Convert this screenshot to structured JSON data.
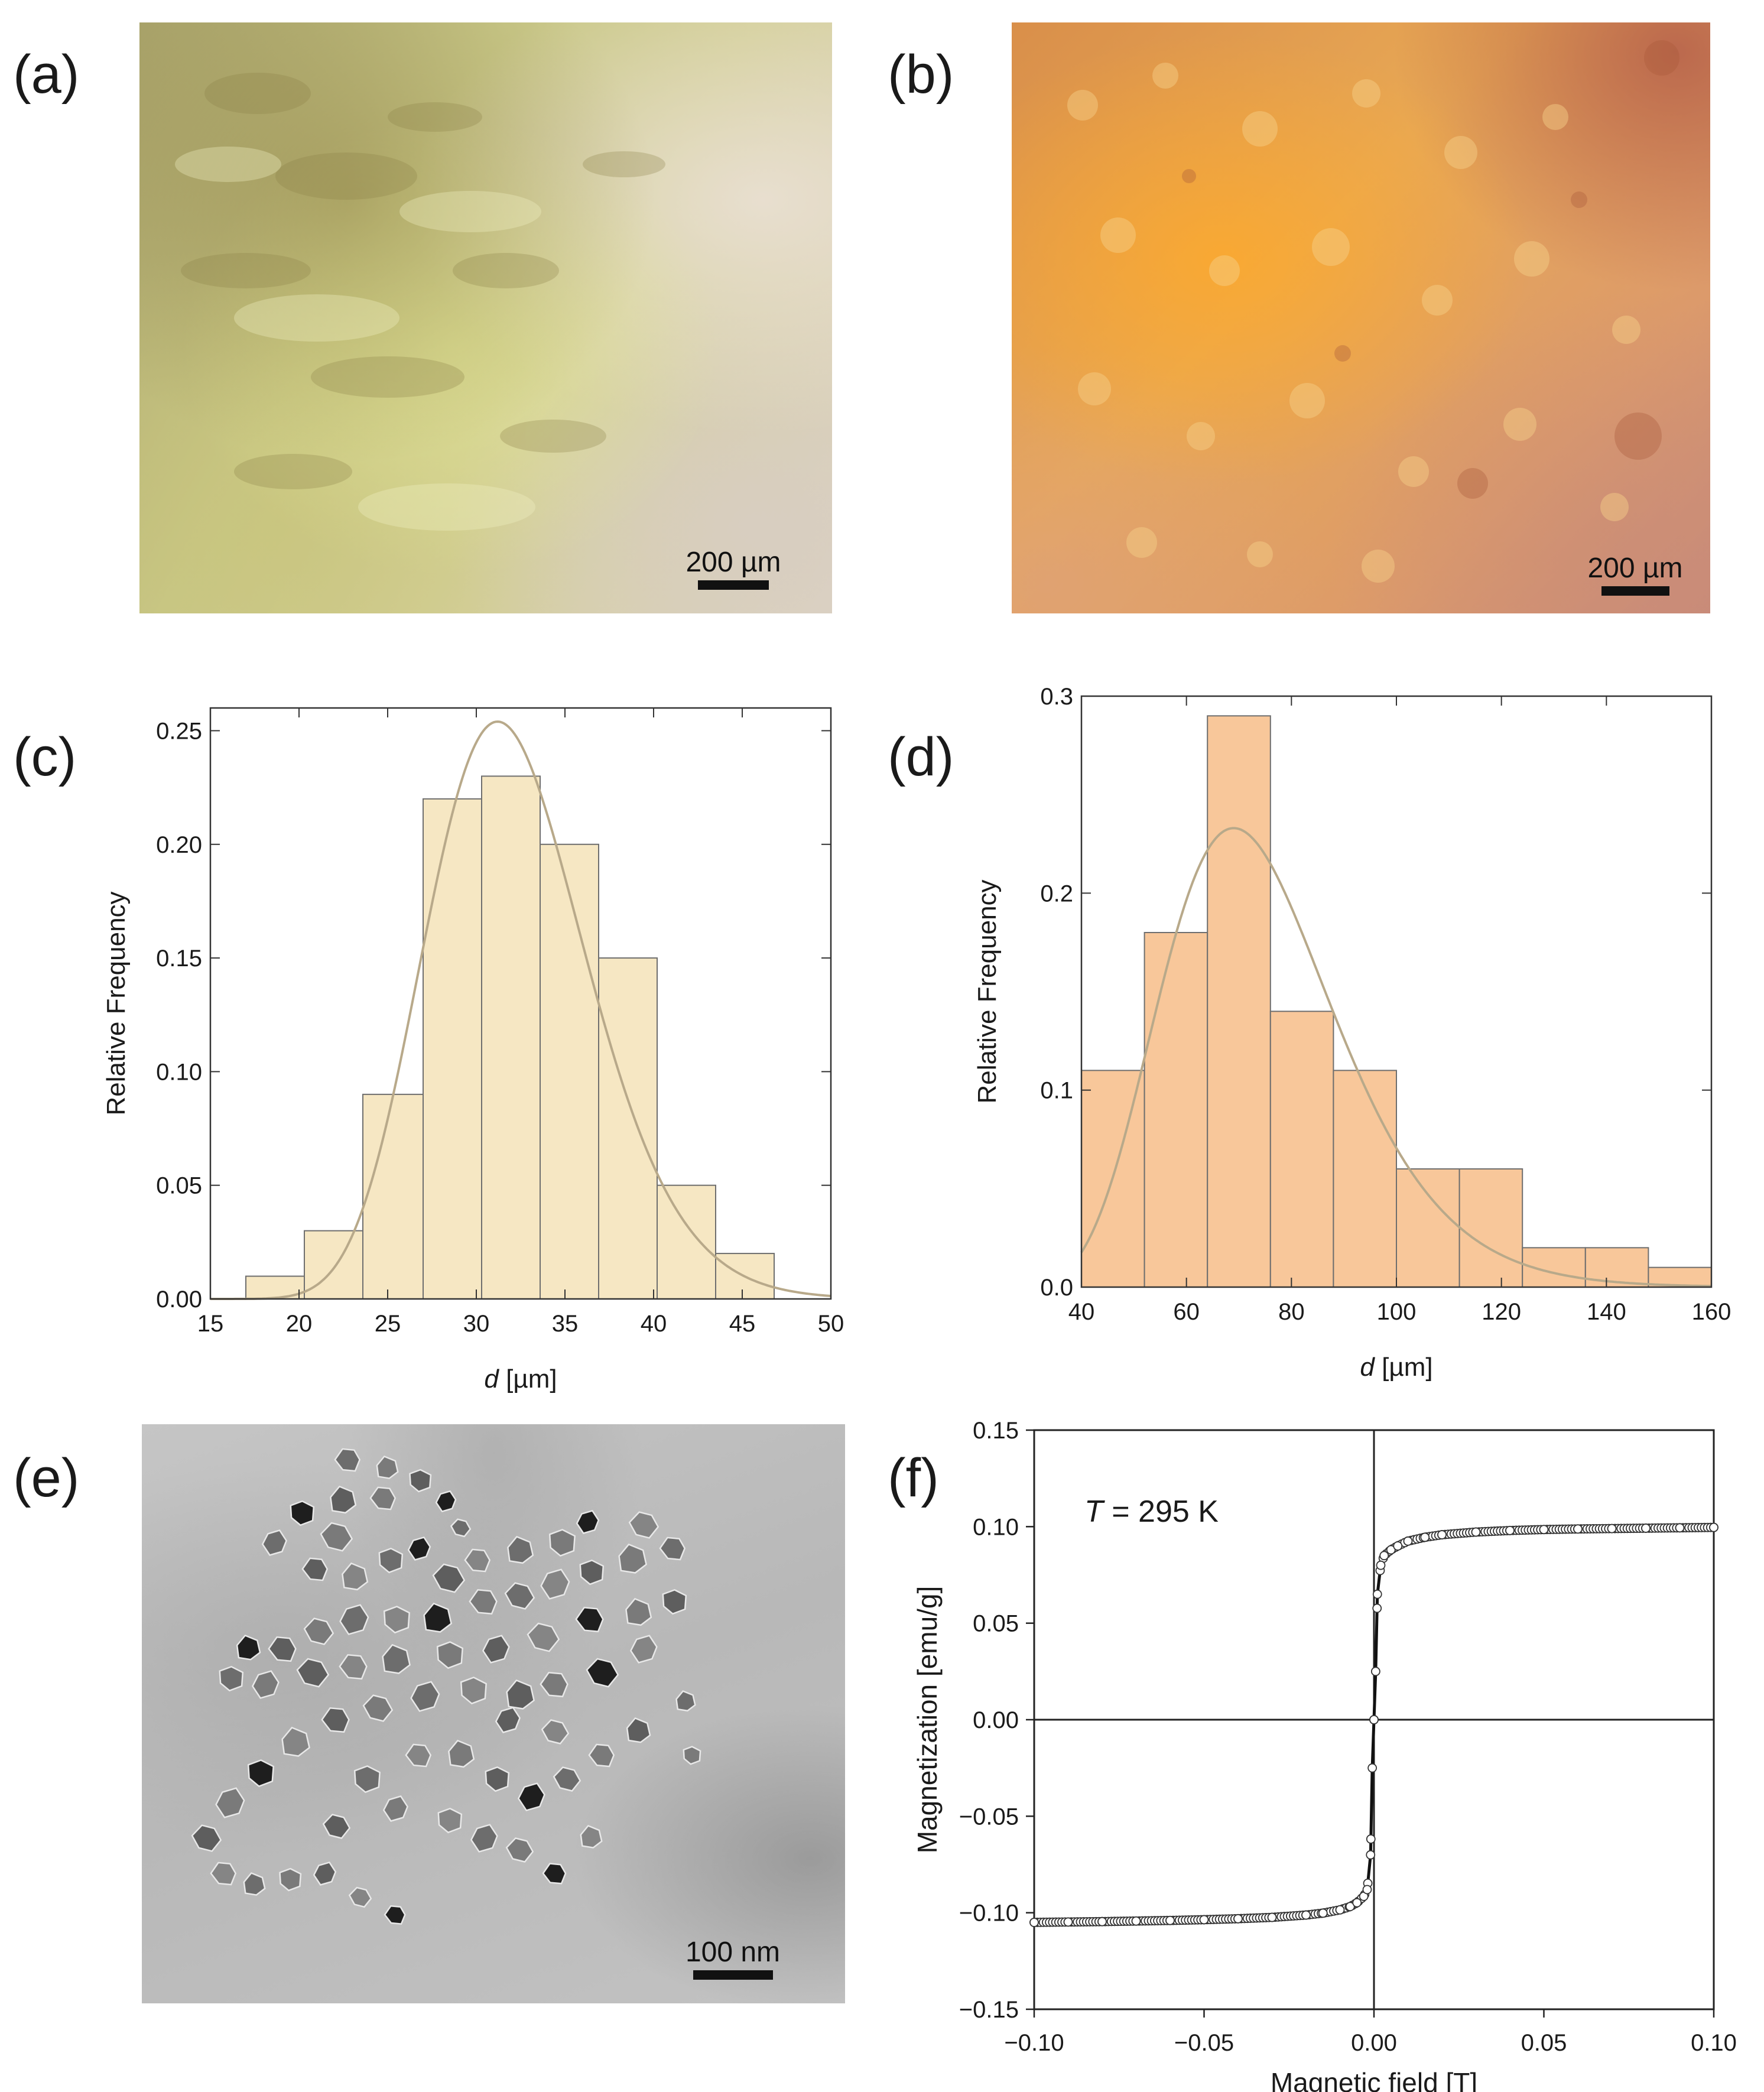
{
  "panels": {
    "a": {
      "label": "(a)",
      "scale": "200 µm"
    },
    "b": {
      "label": "(b)",
      "scale": "200 µm"
    },
    "c": {
      "label": "(c)"
    },
    "d": {
      "label": "(d)"
    },
    "e": {
      "label": "(e)",
      "scale": "100 nm"
    },
    "f": {
      "label": "(f)",
      "annotation_T": "T",
      "annotation_rest": " = 295 K"
    }
  },
  "colors": {
    "hist_c_fill": "#f6e7c3",
    "hist_d_fill": "#f8c79a",
    "bar_stroke": "#6e6e6e",
    "fit_curve": "#b8a98a",
    "photo_a_base": "#c9c489",
    "photo_b_base": "#e5a25a"
  },
  "chart_data": [
    {
      "panel": "c",
      "type": "bar",
      "xlabel_italic": "d",
      "xlabel_rest": " [µm]",
      "ylabel": "Relative Frequency",
      "xlim": [
        15,
        50
      ],
      "ylim": [
        0,
        0.26
      ],
      "xticks": [
        15,
        20,
        25,
        30,
        35,
        40,
        45,
        50
      ],
      "yticks": [
        "0.00",
        "0.05",
        "0.10",
        "0.15",
        "0.20",
        "0.25"
      ],
      "bins": [
        {
          "x0": 17.0,
          "x1": 20.3,
          "value": 0.01
        },
        {
          "x0": 20.3,
          "x1": 23.6,
          "value": 0.03
        },
        {
          "x0": 23.6,
          "x1": 27.0,
          "value": 0.09
        },
        {
          "x0": 27.0,
          "x1": 30.3,
          "value": 0.22
        },
        {
          "x0": 30.3,
          "x1": 33.6,
          "value": 0.23
        },
        {
          "x0": 33.6,
          "x1": 36.9,
          "value": 0.2
        },
        {
          "x0": 36.9,
          "x1": 40.2,
          "value": 0.15
        },
        {
          "x0": 40.2,
          "x1": 43.5,
          "value": 0.05
        },
        {
          "x0": 43.5,
          "x1": 46.8,
          "value": 0.02
        }
      ],
      "fit": {
        "kind": "lognormal",
        "peak_x": 31.2,
        "peak_y": 0.254
      }
    },
    {
      "panel": "d",
      "type": "bar",
      "xlabel_italic": "d",
      "xlabel_rest": " [µm]",
      "ylabel": "Relative Frequency",
      "xlim": [
        40,
        160
      ],
      "ylim": [
        0,
        0.3
      ],
      "xticks": [
        40,
        60,
        80,
        100,
        120,
        140,
        160
      ],
      "yticks": [
        "0.0",
        "0.1",
        "0.2",
        "0.3"
      ],
      "bins": [
        {
          "x0": 40,
          "x1": 52,
          "value": 0.11
        },
        {
          "x0": 52,
          "x1": 64,
          "value": 0.18
        },
        {
          "x0": 64,
          "x1": 76,
          "value": 0.29
        },
        {
          "x0": 76,
          "x1": 88,
          "value": 0.14
        },
        {
          "x0": 88,
          "x1": 100,
          "value": 0.11
        },
        {
          "x0": 100,
          "x1": 112,
          "value": 0.06
        },
        {
          "x0": 112,
          "x1": 124,
          "value": 0.06
        },
        {
          "x0": 124,
          "x1": 136,
          "value": 0.02
        },
        {
          "x0": 136,
          "x1": 148,
          "value": 0.02
        },
        {
          "x0": 148,
          "x1": 160,
          "value": 0.01
        }
      ],
      "fit": {
        "kind": "lognormal",
        "peak_x": 69,
        "peak_y": 0.233
      }
    },
    {
      "panel": "f",
      "type": "scatter",
      "xlabel": "Magnetic field [T]",
      "ylabel": "Magnetization [emu/g]",
      "xlim": [
        -0.1,
        0.1
      ],
      "ylim": [
        -0.15,
        0.15
      ],
      "xticks": [
        "−0.10",
        "−0.05",
        "0.00",
        "0.05",
        "0.10"
      ],
      "xtick_values": [
        -0.1,
        -0.05,
        0,
        0.05,
        0.1
      ],
      "yticks": [
        "0.15",
        "0.10",
        "0.05",
        "0.00",
        "−0.05",
        "−0.10",
        "−0.15"
      ],
      "ytick_values": [
        0.15,
        0.1,
        0.05,
        0,
        -0.05,
        -0.1,
        -0.15
      ],
      "grid": false,
      "series": [
        {
          "x": [
            -0.1,
            -0.09,
            -0.08,
            -0.07,
            -0.06,
            -0.05,
            -0.04,
            -0.03,
            -0.02,
            -0.015,
            -0.01,
            -0.007,
            -0.005,
            -0.003,
            -0.002,
            -0.001,
            -0.0005,
            0,
            0.0005,
            0.001,
            0.002,
            0.003,
            0.005,
            0.007,
            0.01,
            0.015,
            0.02,
            0.03,
            0.04,
            0.05,
            0.06,
            0.07,
            0.08,
            0.09,
            0.1
          ],
          "y": [
            -0.105,
            -0.1048,
            -0.1046,
            -0.1043,
            -0.104,
            -0.1036,
            -0.1031,
            -0.1024,
            -0.1012,
            -0.1002,
            -0.0985,
            -0.0968,
            -0.0948,
            -0.0915,
            -0.088,
            -0.07,
            -0.025,
            0.0,
            0.025,
            0.065,
            0.08,
            0.085,
            0.088,
            0.09,
            0.0925,
            0.0945,
            0.0958,
            0.0972,
            0.098,
            0.0985,
            0.0988,
            0.099,
            0.0992,
            0.0994,
            0.0996
          ]
        }
      ]
    }
  ]
}
